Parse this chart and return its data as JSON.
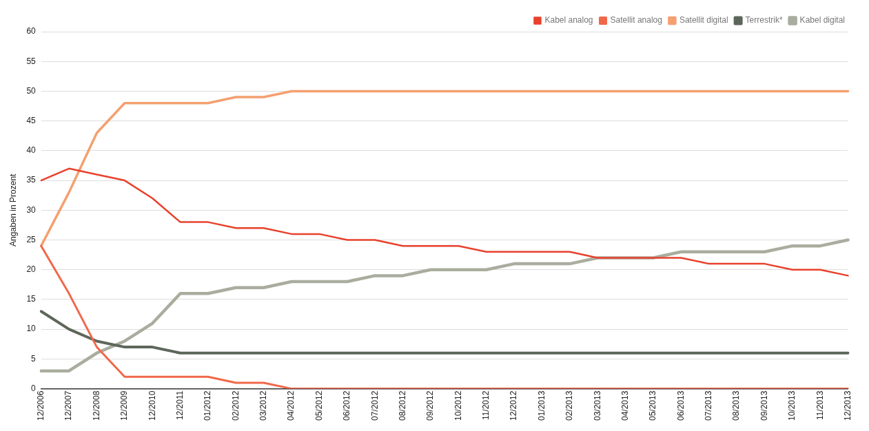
{
  "chart_data": {
    "type": "line",
    "ylabel": "Angaben in Prozent",
    "categories": [
      "12/2006",
      "12/2007",
      "12/2008",
      "12/2009",
      "12/2010",
      "12/2011",
      "01/2012",
      "02/2012",
      "03/2012",
      "04/2012",
      "05/2012",
      "06/2012",
      "07/2012",
      "08/2012",
      "09/2012",
      "10/2012",
      "11/2012",
      "12/2012",
      "01/2013",
      "02/2013",
      "03/2013",
      "04/2013",
      "05/2013",
      "06/2013",
      "07/2013",
      "08/2013",
      "09/2013",
      "10/2013",
      "11/2013",
      "12/2013"
    ],
    "series": [
      {
        "name": "Kabel analog",
        "color": "#e8412c",
        "values": [
          35,
          37,
          36,
          35,
          32,
          28,
          28,
          27,
          27,
          26,
          26,
          25,
          25,
          24,
          24,
          24,
          23,
          23,
          23,
          23,
          22,
          22,
          22,
          22,
          21,
          21,
          21,
          20,
          20,
          19
        ]
      },
      {
        "name": "Satellit analog",
        "color": "#f0684a",
        "values": [
          24,
          16,
          7,
          2,
          2,
          2,
          2,
          1,
          1,
          0,
          0,
          0,
          0,
          0,
          0,
          0,
          0,
          0,
          0,
          0,
          0,
          0,
          0,
          0,
          0,
          0,
          0,
          0,
          0,
          0
        ]
      },
      {
        "name": "Satellit digital",
        "color": "#f4a070",
        "values": [
          24,
          33,
          43,
          48,
          48,
          48,
          48,
          49,
          49,
          50,
          50,
          50,
          50,
          50,
          50,
          50,
          50,
          50,
          50,
          50,
          50,
          50,
          50,
          50,
          50,
          50,
          50,
          50,
          50,
          50
        ]
      },
      {
        "name": "Terrestrik*",
        "color": "#5d665a",
        "values": [
          13,
          10,
          8,
          7,
          7,
          6,
          6,
          6,
          6,
          6,
          6,
          6,
          6,
          6,
          6,
          6,
          6,
          6,
          6,
          6,
          6,
          6,
          6,
          6,
          6,
          6,
          6,
          6,
          6,
          6
        ]
      },
      {
        "name": "Kabel digital",
        "color": "#a9ad9e",
        "values": [
          3,
          3,
          6,
          8,
          11,
          16,
          16,
          17,
          17,
          18,
          18,
          18,
          19,
          19,
          20,
          20,
          20,
          21,
          21,
          21,
          22,
          22,
          22,
          23,
          23,
          23,
          23,
          24,
          24,
          25
        ]
      }
    ],
    "ylim": [
      0,
      60
    ],
    "yticks": [
      0,
      5,
      10,
      15,
      20,
      25,
      30,
      35,
      40,
      45,
      50,
      55,
      60
    ],
    "grid": "y",
    "legend": "top right",
    "marker": "none",
    "line_style": "solid"
  }
}
